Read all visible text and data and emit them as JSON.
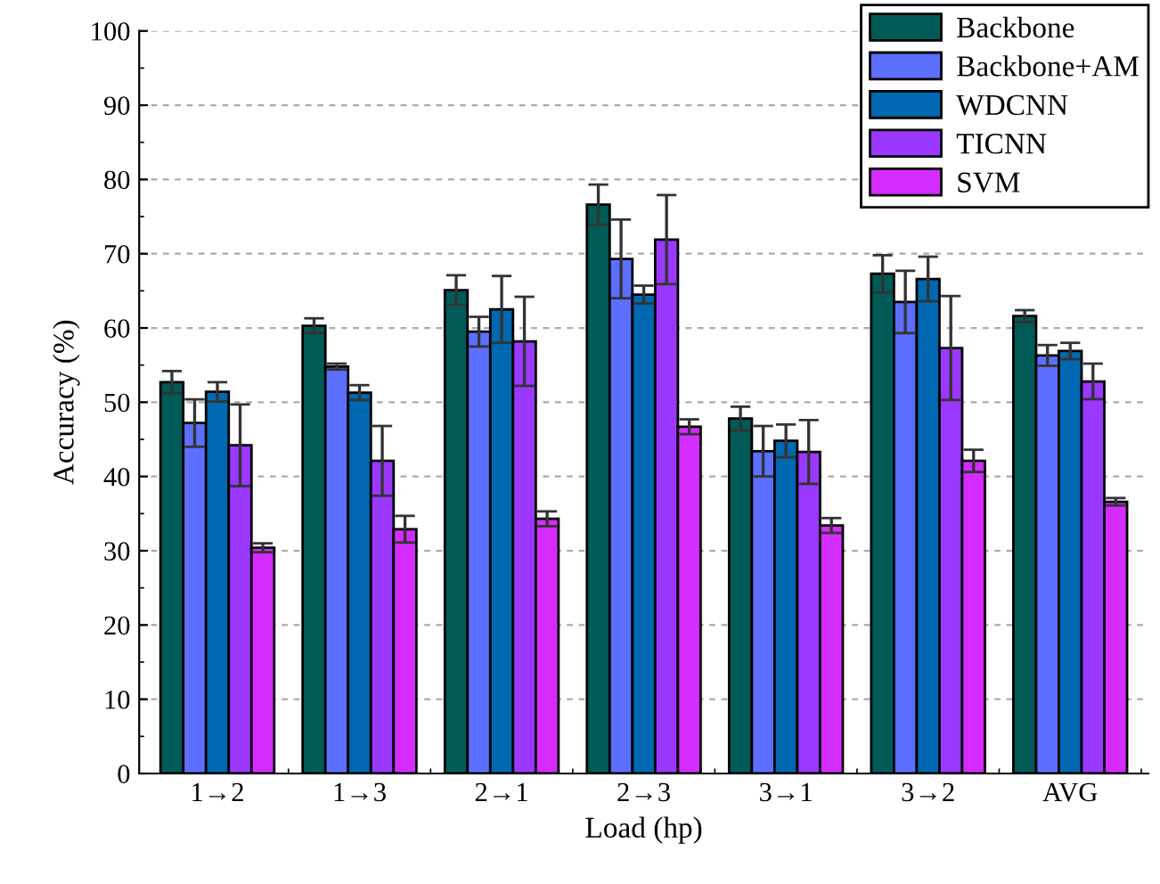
{
  "chart_data": {
    "type": "bar",
    "xlabel": "Load (hp)",
    "ylabel": "Accuracy (%)",
    "categories": [
      "1→2",
      "1→3",
      "2→1",
      "2→3",
      "3→1",
      "3→2",
      "AVG"
    ],
    "series": [
      {
        "name": "Backbone",
        "color": "#005b57",
        "values": [
          52.7,
          60.3,
          65.1,
          76.6,
          47.8,
          67.3,
          61.6
        ],
        "errors": [
          1.5,
          1.0,
          2.0,
          2.7,
          1.6,
          2.5,
          0.8
        ]
      },
      {
        "name": "Backbone+AM",
        "color": "#5c6fff",
        "values": [
          47.2,
          54.8,
          59.5,
          69.3,
          43.4,
          63.5,
          56.3
        ],
        "errors": [
          3.2,
          0.4,
          2.0,
          5.3,
          3.4,
          4.2,
          1.4
        ]
      },
      {
        "name": "WDCNN",
        "color": "#0068b0",
        "values": [
          51.4,
          51.3,
          62.5,
          64.5,
          44.8,
          66.6,
          56.9
        ],
        "errors": [
          1.3,
          1.0,
          4.5,
          1.2,
          2.2,
          3.0,
          1.1
        ]
      },
      {
        "name": "TICNN",
        "color": "#9b38ff",
        "values": [
          44.2,
          42.1,
          58.2,
          71.9,
          43.3,
          57.3,
          52.8
        ],
        "errors": [
          5.5,
          4.7,
          6.0,
          6.0,
          4.3,
          7.0,
          2.4
        ]
      },
      {
        "name": "SVM",
        "color": "#d42cff",
        "values": [
          30.4,
          32.9,
          34.3,
          46.7,
          33.4,
          42.1,
          36.6
        ],
        "errors": [
          0.6,
          1.8,
          1.0,
          1.0,
          1.0,
          1.5,
          0.5
        ]
      }
    ],
    "ylim": [
      0,
      100
    ],
    "yticks": [
      0,
      10,
      20,
      30,
      40,
      50,
      60,
      70,
      80,
      90,
      100
    ],
    "grid": "y",
    "legend": "top right"
  }
}
